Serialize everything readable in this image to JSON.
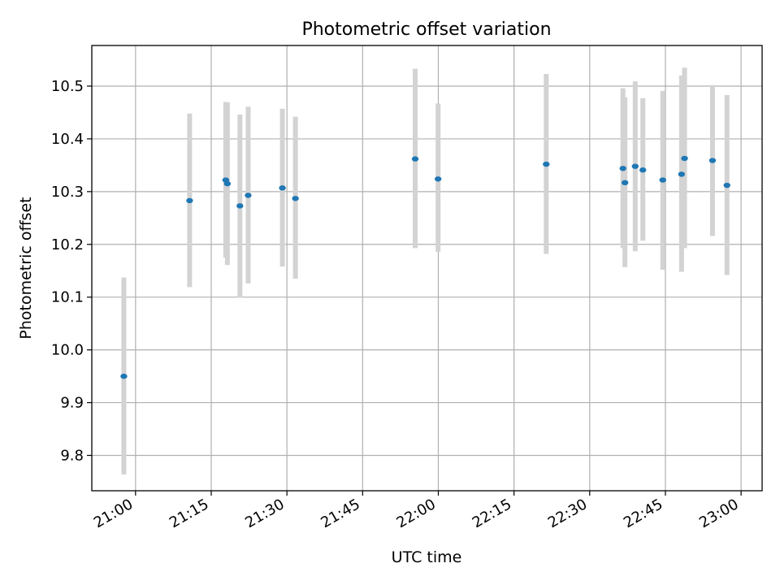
{
  "chart_data": {
    "type": "scatter",
    "title": "Photometric offset variation",
    "xlabel": "UTC time",
    "ylabel": "Photometric offset",
    "grid": true,
    "xlim": [
      "20:51:20",
      "23:04:10"
    ],
    "ylim": [
      9.733,
      10.577
    ],
    "x_ticks": [
      "21:00",
      "21:15",
      "21:30",
      "21:45",
      "22:00",
      "22:15",
      "22:30",
      "22:45",
      "23:00"
    ],
    "y_ticks": [
      9.8,
      9.9,
      10.0,
      10.1,
      10.2,
      10.3,
      10.4,
      10.5
    ],
    "y_tick_labels": [
      "9.8",
      "9.9",
      "10.0",
      "10.1",
      "10.2",
      "10.3",
      "10.4",
      "10.5"
    ],
    "colors": {
      "point": "#1f77b4",
      "errorbar": "#d3d3d3"
    },
    "points": [
      {
        "x": "20:57:41",
        "y": 9.95,
        "ylow": 9.764,
        "yhigh": 10.137
      },
      {
        "x": "21:10:43",
        "y": 10.283,
        "ylow": 10.119,
        "yhigh": 10.448
      },
      {
        "x": "21:17:53",
        "y": 10.322,
        "ylow": 10.175,
        "yhigh": 10.47
      },
      {
        "x": "21:18:12",
        "y": 10.315,
        "ylow": 10.161,
        "yhigh": 10.469
      },
      {
        "x": "21:20:41",
        "y": 10.273,
        "ylow": 10.099,
        "yhigh": 10.446
      },
      {
        "x": "21:22:19",
        "y": 10.293,
        "ylow": 10.126,
        "yhigh": 10.461
      },
      {
        "x": "21:29:06",
        "y": 10.307,
        "ylow": 10.158,
        "yhigh": 10.457
      },
      {
        "x": "21:31:41",
        "y": 10.287,
        "ylow": 10.135,
        "yhigh": 10.442
      },
      {
        "x": "21:55:25",
        "y": 10.362,
        "ylow": 10.193,
        "yhigh": 10.533
      },
      {
        "x": "21:59:57",
        "y": 10.324,
        "ylow": 10.186,
        "yhigh": 10.467
      },
      {
        "x": "22:21:23",
        "y": 10.352,
        "ylow": 10.182,
        "yhigh": 10.523
      },
      {
        "x": "22:36:35",
        "y": 10.344,
        "ylow": 10.193,
        "yhigh": 10.496
      },
      {
        "x": "22:36:59",
        "y": 10.317,
        "ylow": 10.157,
        "yhigh": 10.479
      },
      {
        "x": "22:39:01",
        "y": 10.348,
        "ylow": 10.187,
        "yhigh": 10.509
      },
      {
        "x": "22:40:32",
        "y": 10.341,
        "ylow": 10.207,
        "yhigh": 10.477
      },
      {
        "x": "22:44:29",
        "y": 10.322,
        "ylow": 10.152,
        "yhigh": 10.491
      },
      {
        "x": "22:48:12",
        "y": 10.333,
        "ylow": 10.148,
        "yhigh": 10.52
      },
      {
        "x": "22:48:48",
        "y": 10.363,
        "ylow": 10.193,
        "yhigh": 10.535
      },
      {
        "x": "22:54:20",
        "y": 10.359,
        "ylow": 10.216,
        "yhigh": 10.502
      },
      {
        "x": "22:57:12",
        "y": 10.312,
        "ylow": 10.142,
        "yhigh": 10.483
      }
    ]
  }
}
